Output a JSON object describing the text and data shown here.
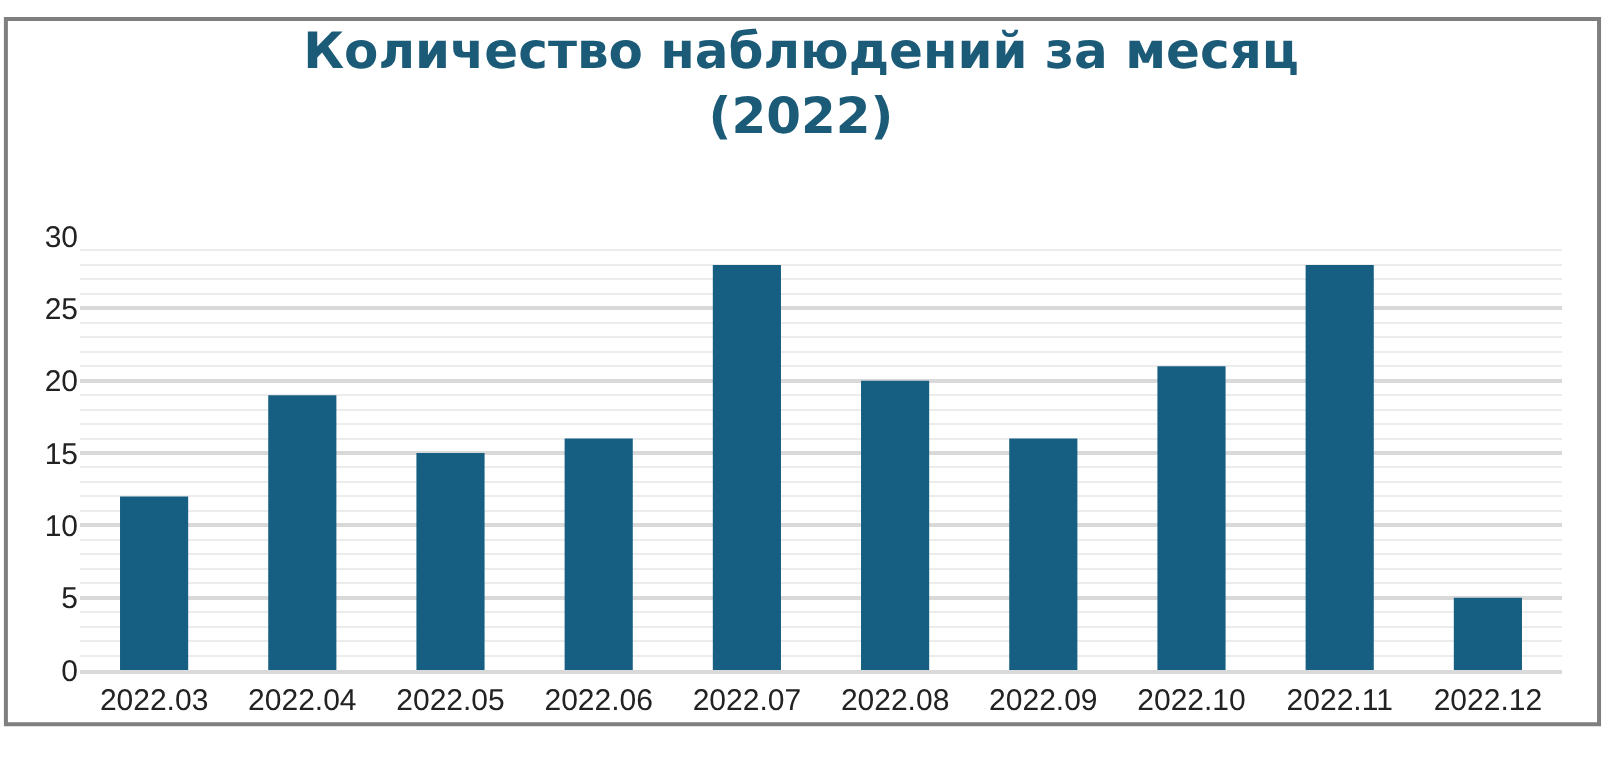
{
  "chart_data": {
    "type": "bar",
    "title": "Количество наблюдений за месяц (2022)",
    "categories": [
      "2022.03",
      "2022.04",
      "2022.05",
      "2022.06",
      "2022.07",
      "2022.08",
      "2022.09",
      "2022.10",
      "2022.11",
      "2022.12"
    ],
    "values": [
      12,
      19,
      15,
      16,
      28,
      20,
      16,
      21,
      28,
      5
    ],
    "color": "#165f82",
    "ylim": [
      0,
      30
    ],
    "yticks": [
      0,
      5,
      10,
      15,
      20,
      25,
      30
    ],
    "grid": "y"
  }
}
